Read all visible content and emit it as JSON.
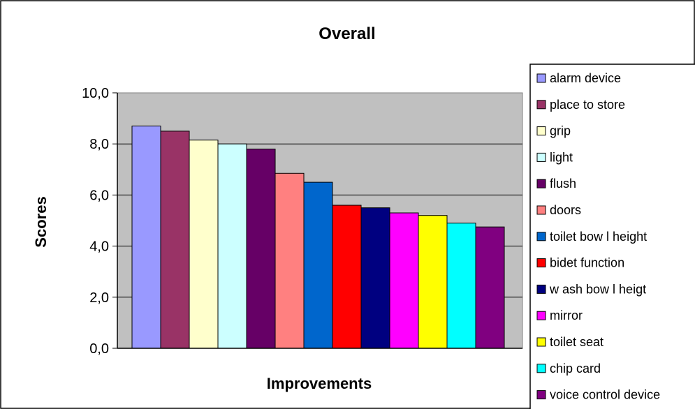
{
  "chart_data": {
    "type": "bar",
    "title": "Overall",
    "xlabel": "Improvements",
    "ylabel": "Scores",
    "ylim": [
      0,
      10
    ],
    "y_ticks": [
      "0,0",
      "2,0",
      "4,0",
      "6,0",
      "8,0",
      "10,0"
    ],
    "grid": true,
    "legend_position": "right",
    "plot_background": "#c0c0c0",
    "series": [
      {
        "name": "alarm device",
        "value": 8.7,
        "color": "#9999ff"
      },
      {
        "name": "place to store",
        "value": 8.5,
        "color": "#993366"
      },
      {
        "name": "grip",
        "value": 8.15,
        "color": "#ffffcc"
      },
      {
        "name": "light",
        "value": 8.0,
        "color": "#ccffff"
      },
      {
        "name": "flush",
        "value": 7.8,
        "color": "#660066"
      },
      {
        "name": "doors",
        "value": 6.85,
        "color": "#ff8080"
      },
      {
        "name": "toilet bow l height",
        "value": 6.5,
        "color": "#0066cc"
      },
      {
        "name": "bidet function",
        "value": 5.6,
        "color": "#ff0000"
      },
      {
        "name": "w ash bow l heigt",
        "value": 5.5,
        "color": "#000080"
      },
      {
        "name": "mirror",
        "value": 5.3,
        "color": "#ff00ff"
      },
      {
        "name": "toilet seat",
        "value": 5.2,
        "color": "#ffff00"
      },
      {
        "name": "chip card",
        "value": 4.9,
        "color": "#00ffff"
      },
      {
        "name": "voice control device",
        "value": 4.75,
        "color": "#800080"
      }
    ]
  }
}
